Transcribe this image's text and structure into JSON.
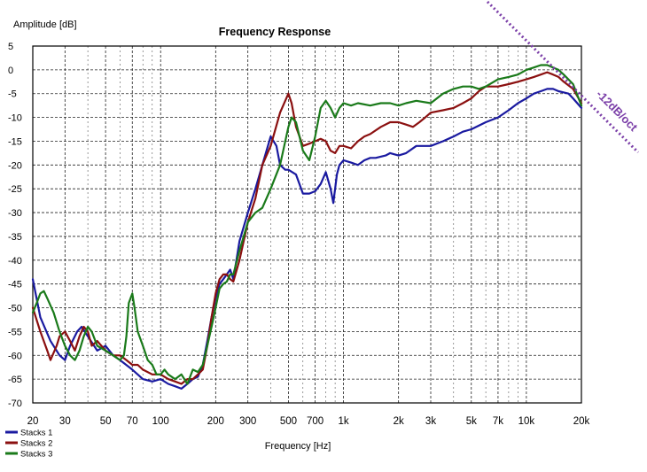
{
  "chart_data": {
    "type": "line",
    "title": "Frequency Response",
    "ylabel": "Amplitude [dB]",
    "xlabel": "Frequency [Hz]",
    "x_scale": "log",
    "xlim": [
      20,
      20000
    ],
    "ylim": [
      -70,
      5
    ],
    "grid": true,
    "legend": "bottom-left",
    "x_ticks": [
      {
        "v": 20,
        "label": "20"
      },
      {
        "v": 30,
        "label": "30"
      },
      {
        "v": 50,
        "label": "50"
      },
      {
        "v": 70,
        "label": "70"
      },
      {
        "v": 100,
        "label": "100"
      },
      {
        "v": 200,
        "label": "200"
      },
      {
        "v": 300,
        "label": "300"
      },
      {
        "v": 500,
        "label": "500"
      },
      {
        "v": 700,
        "label": "700"
      },
      {
        "v": 1000,
        "label": "1k"
      },
      {
        "v": 2000,
        "label": "2k"
      },
      {
        "v": 3000,
        "label": "3k"
      },
      {
        "v": 5000,
        "label": "5k"
      },
      {
        "v": 7000,
        "label": "7k"
      },
      {
        "v": 10000,
        "label": "10k"
      },
      {
        "v": 20000,
        "label": "20k"
      }
    ],
    "y_ticks": [
      5,
      0,
      -5,
      -10,
      -15,
      -20,
      -25,
      -30,
      -35,
      -40,
      -45,
      -50,
      -55,
      -60,
      -65,
      -70
    ],
    "annotation": {
      "label": "-12dB/oct",
      "color": "#7b3fa8"
    },
    "series": [
      {
        "name": "Stacks 1",
        "color": "#1a1aa0",
        "points": [
          [
            20,
            -44
          ],
          [
            22,
            -52
          ],
          [
            25,
            -57
          ],
          [
            28,
            -60
          ],
          [
            30,
            -61
          ],
          [
            32,
            -58
          ],
          [
            35,
            -55
          ],
          [
            37,
            -54
          ],
          [
            40,
            -56
          ],
          [
            45,
            -59
          ],
          [
            50,
            -58
          ],
          [
            55,
            -60
          ],
          [
            60,
            -61
          ],
          [
            70,
            -63
          ],
          [
            80,
            -65
          ],
          [
            90,
            -65.5
          ],
          [
            100,
            -65
          ],
          [
            110,
            -66
          ],
          [
            120,
            -66.5
          ],
          [
            130,
            -67
          ],
          [
            140,
            -66
          ],
          [
            150,
            -65
          ],
          [
            160,
            -64.5
          ],
          [
            170,
            -62
          ],
          [
            180,
            -57
          ],
          [
            190,
            -52
          ],
          [
            200,
            -48
          ],
          [
            210,
            -45
          ],
          [
            220,
            -44
          ],
          [
            230,
            -43
          ],
          [
            240,
            -42
          ],
          [
            250,
            -44
          ],
          [
            270,
            -36
          ],
          [
            300,
            -30
          ],
          [
            330,
            -25
          ],
          [
            360,
            -20
          ],
          [
            400,
            -14
          ],
          [
            430,
            -16
          ],
          [
            450,
            -20
          ],
          [
            480,
            -21
          ],
          [
            500,
            -21
          ],
          [
            550,
            -22
          ],
          [
            600,
            -26
          ],
          [
            650,
            -26
          ],
          [
            700,
            -25.5
          ],
          [
            750,
            -24
          ],
          [
            800,
            -21.5
          ],
          [
            850,
            -25
          ],
          [
            880,
            -28
          ],
          [
            920,
            -22
          ],
          [
            950,
            -20
          ],
          [
            1000,
            -19
          ],
          [
            1100,
            -19.5
          ],
          [
            1200,
            -20
          ],
          [
            1300,
            -19
          ],
          [
            1400,
            -18.5
          ],
          [
            1500,
            -18.5
          ],
          [
            1700,
            -18
          ],
          [
            1800,
            -17.5
          ],
          [
            2000,
            -18
          ],
          [
            2200,
            -17.5
          ],
          [
            2500,
            -16
          ],
          [
            3000,
            -16
          ],
          [
            3500,
            -15
          ],
          [
            4000,
            -14
          ],
          [
            4500,
            -13
          ],
          [
            5000,
            -12.5
          ],
          [
            6000,
            -11
          ],
          [
            7000,
            -10
          ],
          [
            8000,
            -8.5
          ],
          [
            9000,
            -7
          ],
          [
            10000,
            -6
          ],
          [
            11000,
            -5
          ],
          [
            12000,
            -4.5
          ],
          [
            13000,
            -4
          ],
          [
            14000,
            -4
          ],
          [
            15000,
            -4.5
          ],
          [
            17000,
            -5
          ],
          [
            18000,
            -6
          ],
          [
            20000,
            -8
          ]
        ]
      },
      {
        "name": "Stacks 2",
        "color": "#8b1010",
        "points": [
          [
            20,
            -50
          ],
          [
            22,
            -55
          ],
          [
            24,
            -59
          ],
          [
            25,
            -61
          ],
          [
            27,
            -58
          ],
          [
            28,
            -56
          ],
          [
            30,
            -55
          ],
          [
            32,
            -57
          ],
          [
            34,
            -59
          ],
          [
            36,
            -56
          ],
          [
            38,
            -54
          ],
          [
            40,
            -55
          ],
          [
            42,
            -58
          ],
          [
            45,
            -57
          ],
          [
            50,
            -59
          ],
          [
            55,
            -60
          ],
          [
            60,
            -60
          ],
          [
            65,
            -61
          ],
          [
            70,
            -62
          ],
          [
            75,
            -62
          ],
          [
            80,
            -63
          ],
          [
            90,
            -64
          ],
          [
            100,
            -64
          ],
          [
            110,
            -65
          ],
          [
            120,
            -65.5
          ],
          [
            130,
            -66
          ],
          [
            140,
            -65
          ],
          [
            150,
            -65
          ],
          [
            160,
            -64
          ],
          [
            170,
            -63
          ],
          [
            180,
            -58
          ],
          [
            190,
            -52
          ],
          [
            200,
            -47
          ],
          [
            210,
            -44
          ],
          [
            220,
            -43
          ],
          [
            230,
            -43
          ],
          [
            240,
            -44
          ],
          [
            250,
            -44.5
          ],
          [
            270,
            -40
          ],
          [
            300,
            -32
          ],
          [
            330,
            -27
          ],
          [
            360,
            -20
          ],
          [
            400,
            -16
          ],
          [
            450,
            -9
          ],
          [
            500,
            -5
          ],
          [
            520,
            -7
          ],
          [
            550,
            -12
          ],
          [
            600,
            -16
          ],
          [
            650,
            -15.5
          ],
          [
            700,
            -15
          ],
          [
            750,
            -14.5
          ],
          [
            800,
            -15
          ],
          [
            850,
            -17
          ],
          [
            900,
            -17.5
          ],
          [
            950,
            -16
          ],
          [
            1000,
            -16
          ],
          [
            1100,
            -16.5
          ],
          [
            1200,
            -15
          ],
          [
            1300,
            -14
          ],
          [
            1400,
            -13.5
          ],
          [
            1600,
            -12
          ],
          [
            1800,
            -11
          ],
          [
            2000,
            -11
          ],
          [
            2200,
            -11.5
          ],
          [
            2400,
            -12
          ],
          [
            2600,
            -11
          ],
          [
            2800,
            -10
          ],
          [
            3000,
            -9
          ],
          [
            3500,
            -8.5
          ],
          [
            4000,
            -8
          ],
          [
            4500,
            -7
          ],
          [
            5000,
            -6
          ],
          [
            5500,
            -4.5
          ],
          [
            6000,
            -3.5
          ],
          [
            7000,
            -3.5
          ],
          [
            8000,
            -3
          ],
          [
            9000,
            -2.5
          ],
          [
            10000,
            -2
          ],
          [
            11000,
            -1.5
          ],
          [
            12000,
            -1
          ],
          [
            13000,
            -0.5
          ],
          [
            14000,
            -1
          ],
          [
            15000,
            -1.5
          ],
          [
            16000,
            -2.5
          ],
          [
            18000,
            -4
          ],
          [
            20000,
            -7
          ]
        ]
      },
      {
        "name": "Stacks 3",
        "color": "#1a7a1a",
        "points": [
          [
            20,
            -51
          ],
          [
            21,
            -49
          ],
          [
            22,
            -47
          ],
          [
            23,
            -46.5
          ],
          [
            24,
            -48
          ],
          [
            26,
            -51
          ],
          [
            28,
            -55
          ],
          [
            30,
            -58
          ],
          [
            32,
            -60
          ],
          [
            34,
            -61
          ],
          [
            36,
            -59
          ],
          [
            38,
            -56
          ],
          [
            40,
            -54
          ],
          [
            42,
            -55
          ],
          [
            45,
            -58
          ],
          [
            50,
            -59
          ],
          [
            55,
            -60
          ],
          [
            60,
            -61
          ],
          [
            63,
            -60
          ],
          [
            65,
            -56
          ],
          [
            67,
            -49
          ],
          [
            70,
            -47
          ],
          [
            72,
            -50
          ],
          [
            75,
            -55
          ],
          [
            80,
            -58
          ],
          [
            85,
            -61
          ],
          [
            90,
            -62
          ],
          [
            95,
            -64
          ],
          [
            100,
            -64
          ],
          [
            105,
            -63
          ],
          [
            110,
            -64
          ],
          [
            120,
            -65
          ],
          [
            130,
            -64
          ],
          [
            140,
            -66
          ],
          [
            150,
            -63
          ],
          [
            160,
            -63.5
          ],
          [
            170,
            -62
          ],
          [
            180,
            -58
          ],
          [
            190,
            -54
          ],
          [
            200,
            -50
          ],
          [
            210,
            -46
          ],
          [
            220,
            -45
          ],
          [
            230,
            -44.5
          ],
          [
            240,
            -43
          ],
          [
            250,
            -43
          ],
          [
            270,
            -38
          ],
          [
            300,
            -32
          ],
          [
            330,
            -30
          ],
          [
            360,
            -29
          ],
          [
            400,
            -25
          ],
          [
            450,
            -20
          ],
          [
            500,
            -12
          ],
          [
            520,
            -10
          ],
          [
            550,
            -11
          ],
          [
            600,
            -17
          ],
          [
            650,
            -19
          ],
          [
            700,
            -14
          ],
          [
            750,
            -8
          ],
          [
            800,
            -6.5
          ],
          [
            850,
            -8
          ],
          [
            900,
            -10
          ],
          [
            950,
            -8
          ],
          [
            1000,
            -7
          ],
          [
            1100,
            -7.5
          ],
          [
            1200,
            -7
          ],
          [
            1400,
            -7.5
          ],
          [
            1600,
            -7
          ],
          [
            1800,
            -7
          ],
          [
            2000,
            -7.5
          ],
          [
            2200,
            -7
          ],
          [
            2500,
            -6.5
          ],
          [
            3000,
            -7
          ],
          [
            3500,
            -5
          ],
          [
            4000,
            -4
          ],
          [
            4500,
            -3.5
          ],
          [
            5000,
            -3.5
          ],
          [
            5500,
            -4
          ],
          [
            6000,
            -3.5
          ],
          [
            7000,
            -2
          ],
          [
            8000,
            -1.5
          ],
          [
            9000,
            -1
          ],
          [
            10000,
            0
          ],
          [
            11000,
            0.5
          ],
          [
            12000,
            1
          ],
          [
            13000,
            1
          ],
          [
            14000,
            0.5
          ],
          [
            15000,
            0
          ],
          [
            16000,
            -1
          ],
          [
            18000,
            -3
          ],
          [
            20000,
            -7.5
          ]
        ]
      }
    ]
  }
}
